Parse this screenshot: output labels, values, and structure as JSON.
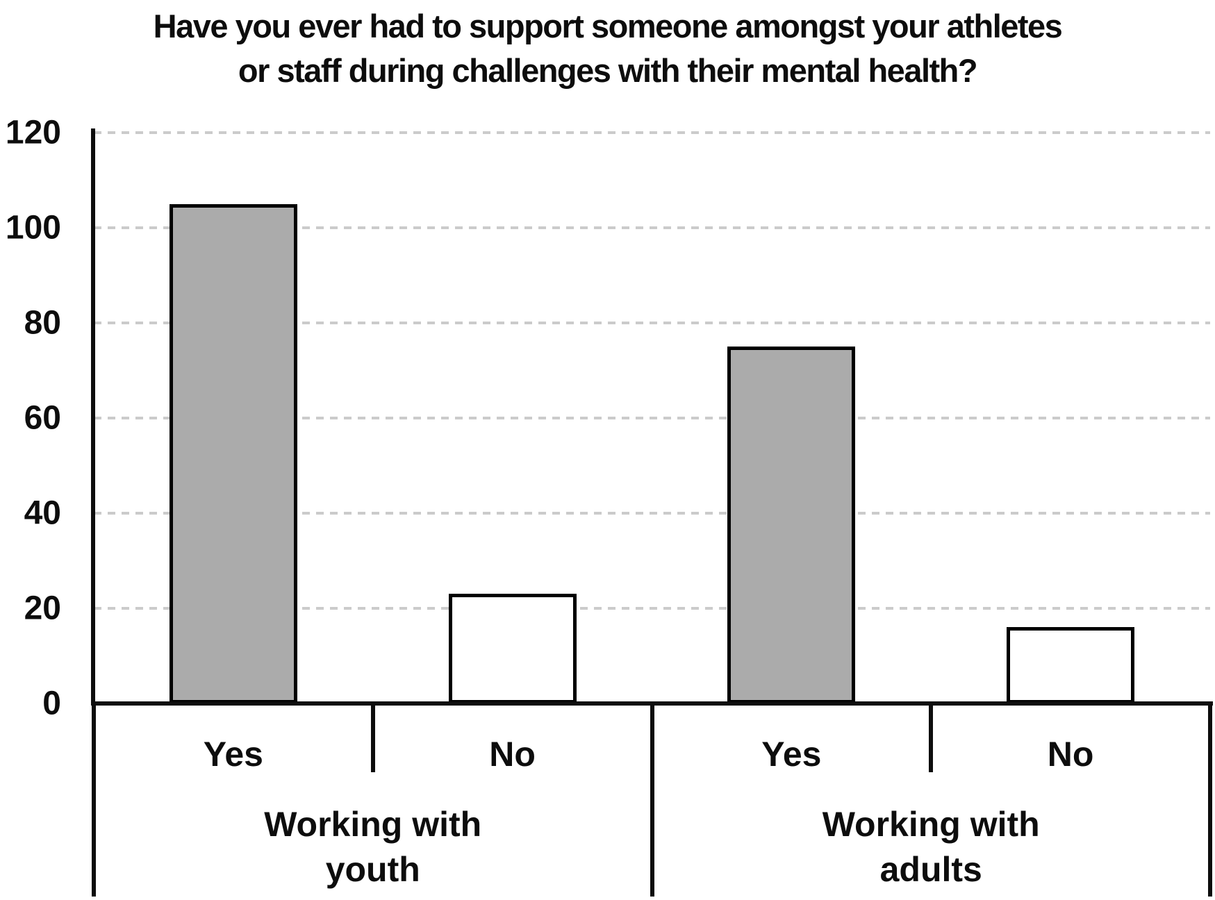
{
  "chart_data": {
    "type": "bar",
    "title": "Have you ever had to support someone amongst your athletes or staff during challenges with their mental health?",
    "title_lines": [
      "Have you ever had to support someone amongst your athletes",
      "or staff during challenges with their mental health?"
    ],
    "xlabel": "",
    "ylabel": "",
    "ylim": [
      0,
      120
    ],
    "yticks": [
      0,
      20,
      40,
      60,
      80,
      100,
      120
    ],
    "grid": {
      "horizontal": true,
      "style": "dashed",
      "color": "#cbcbcb"
    },
    "legend": "none",
    "categories": [
      "Yes",
      "No",
      "Yes",
      "No"
    ],
    "values": [
      105,
      23,
      75,
      16
    ],
    "groups": [
      {
        "label": "Working with youth",
        "label_lines": [
          "Working with",
          "youth"
        ],
        "key": "youth",
        "bars": [
          {
            "category": "Yes",
            "value": 105,
            "fill": "#ababab"
          },
          {
            "category": "No",
            "value": 23,
            "fill": "#ffffff"
          }
        ]
      },
      {
        "label": "Working with adults",
        "label_lines": [
          "Working with",
          "adults"
        ],
        "key": "adults",
        "bars": [
          {
            "category": "Yes",
            "value": 75,
            "fill": "#ababab"
          },
          {
            "category": "No",
            "value": 16,
            "fill": "#ffffff"
          }
        ]
      }
    ],
    "colors": {
      "bar_yes_fill": "#ababab",
      "bar_no_fill": "#ffffff",
      "bar_border": "#000000",
      "axis": "#0d0d0d",
      "grid": "#cbcbcb",
      "text": "#0d0d0d",
      "background": "#ffffff"
    }
  }
}
